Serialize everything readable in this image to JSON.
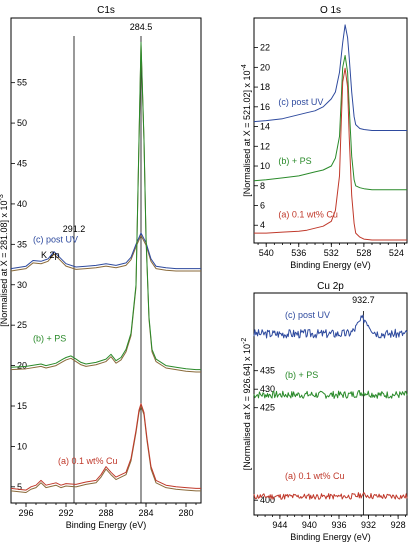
{
  "chart_data": [
    {
      "type": "line",
      "title": "C1s",
      "xlabel": "Binding Energy (eV)",
      "ylabel": "[Normalised at X = 281.08] x 10",
      "ylabel_exponent": "-3",
      "xlim": [
        297.5,
        278.5
      ],
      "ylim": [
        3,
        63
      ],
      "x_ticks": [
        "296",
        "292",
        "288",
        "284",
        "280"
      ],
      "x_tick_values": [
        296,
        292,
        288,
        284,
        280
      ],
      "y_ticks": [
        "5",
        "10",
        "15",
        "20",
        "25",
        "30",
        "35",
        "40",
        "45",
        "50",
        "55"
      ],
      "y_tick_values": [
        5,
        10,
        15,
        20,
        25,
        30,
        35,
        40,
        45,
        50,
        55
      ],
      "vlines": [
        284.5,
        291.2
      ],
      "annotations": [
        {
          "text": "284.5",
          "x": 284.5,
          "y": 61.5
        },
        {
          "text": "291.2",
          "x": 291.2,
          "y": 36.5
        },
        {
          "text": "K 2p",
          "x": 294.5,
          "y": 33.3
        }
      ],
      "series": [
        {
          "name": "(c) post UV",
          "color": "#2e4a9e",
          "label_x": 295.3,
          "label_y": 35.2,
          "x": [
            297.5,
            296,
            295.3,
            294.5,
            293.8,
            293.2,
            292.8,
            292,
            291,
            290,
            289,
            288,
            287,
            286,
            285.5,
            285,
            284.5,
            284,
            283.5,
            283,
            282,
            281,
            280,
            279,
            278.5
          ],
          "y": [
            32.0,
            32.3,
            33.0,
            32.9,
            33.2,
            34.1,
            33.6,
            32.6,
            32.2,
            32.3,
            32.4,
            32.6,
            32.4,
            32.7,
            33.4,
            35.0,
            36.4,
            35.2,
            33.2,
            32.3,
            32.1,
            32.0,
            32.0,
            32.0,
            32.0
          ]
        },
        {
          "name": "(b) + PS",
          "color": "#2a8a2a",
          "label_x": 295.3,
          "label_y": 23.0,
          "x": [
            297.5,
            296,
            294.5,
            294,
            293,
            292.3,
            292,
            291.5,
            291,
            290.5,
            290,
            289,
            288,
            287.5,
            287,
            286.5,
            286,
            285.5,
            285,
            284.8,
            284.5,
            284.2,
            284,
            283.7,
            283.4,
            283,
            282,
            281,
            280,
            279,
            278.5
          ],
          "y": [
            19.8,
            19.9,
            20.2,
            20.0,
            20.3,
            20.8,
            21.0,
            21.2,
            20.8,
            20.4,
            20.2,
            20.4,
            20.8,
            21.4,
            20.6,
            21.0,
            22.0,
            24.0,
            30.0,
            42.0,
            60.0,
            48.0,
            36.0,
            26.0,
            22.0,
            20.8,
            20.0,
            19.8,
            19.6,
            19.5,
            19.5
          ]
        },
        {
          "name": "(a) 0.1 wt% Cu",
          "color": "#c0392b",
          "label_x": 292.8,
          "label_y": 7.8,
          "x": [
            297.5,
            296,
            295.5,
            295,
            294.5,
            294,
            293,
            292.5,
            292,
            291,
            290,
            289,
            288.5,
            288,
            287.5,
            287,
            286,
            285.5,
            285,
            284.7,
            284.5,
            284.2,
            283.9,
            283.5,
            283,
            282,
            281,
            280,
            279,
            278.5
          ],
          "y": [
            4.8,
            4.6,
            5.0,
            5.2,
            5.8,
            5.2,
            5.5,
            5.2,
            5.4,
            5.3,
            5.6,
            5.8,
            6.5,
            7.5,
            6.8,
            6.2,
            6.8,
            8.5,
            12.0,
            14.5,
            15.3,
            14.2,
            11.0,
            7.5,
            5.8,
            5.2,
            5.0,
            4.9,
            4.8,
            4.8
          ]
        }
      ]
    },
    {
      "type": "line",
      "title": "O 1s",
      "xlabel": "Binding Energy (eV)",
      "ylabel": "[Normalised at X = 521.02] x 10",
      "ylabel_exponent": "-4",
      "xlim": [
        541.5,
        522.7
      ],
      "ylim": [
        2.2,
        25
      ],
      "x_ticks": [
        "540",
        "536",
        "532",
        "528",
        "524"
      ],
      "x_tick_values": [
        540,
        536,
        532,
        528,
        524
      ],
      "y_ticks": [
        "4",
        "6",
        "8",
        "10",
        "12",
        "14",
        "16",
        "18",
        "20",
        "22"
      ],
      "y_tick_values": [
        4,
        6,
        8,
        10,
        12,
        14,
        16,
        18,
        20,
        22
      ],
      "series": [
        {
          "name": "(c) post UV",
          "color": "#2e4a9e",
          "label_x": 538.5,
          "label_y": 16.2,
          "x": [
            541.5,
            540,
            538,
            536,
            535,
            534,
            533,
            532.5,
            532,
            531.5,
            531,
            530.6,
            530.3,
            530,
            529.8,
            529.5,
            529.2,
            529,
            528.5,
            528,
            527,
            526,
            525,
            524,
            522.7
          ],
          "y": [
            14.5,
            14.6,
            14.8,
            15.2,
            15.4,
            15.6,
            16.0,
            16.4,
            16.8,
            17.5,
            19.5,
            22.5,
            24.3,
            23.0,
            21.0,
            17.5,
            15.0,
            14.2,
            13.8,
            13.7,
            13.6,
            13.6,
            13.6,
            13.6,
            13.6
          ]
        },
        {
          "name": "(b) + PS",
          "color": "#2a8a2a",
          "label_x": 538.5,
          "label_y": 10.2,
          "x": [
            541.5,
            540,
            538,
            536,
            535,
            534,
            533,
            532,
            531.5,
            531,
            530.8,
            530.6,
            530.3,
            530,
            529.8,
            529.5,
            529.2,
            529,
            528.5,
            528,
            527,
            526,
            525,
            524,
            522.7
          ],
          "y": [
            8.5,
            8.6,
            8.8,
            9.0,
            9.2,
            9.4,
            9.6,
            10.0,
            10.8,
            13.0,
            16.5,
            20.0,
            21.2,
            19.5,
            16.0,
            11.0,
            8.6,
            8.0,
            7.8,
            7.7,
            7.6,
            7.6,
            7.6,
            7.6,
            7.6
          ]
        },
        {
          "name": "(a) 0.1 wt% Cu",
          "color": "#c0392b",
          "label_x": 538.5,
          "label_y": 4.8,
          "x": [
            541.5,
            540,
            538,
            536,
            535,
            534,
            533,
            532,
            531.5,
            531,
            530.8,
            530.6,
            530.3,
            530,
            529.8,
            529.5,
            529.2,
            529,
            528.5,
            528,
            527,
            526,
            525,
            524,
            522.7
          ],
          "y": [
            3.2,
            3.2,
            3.3,
            3.4,
            3.5,
            3.7,
            3.9,
            4.4,
            5.5,
            9.0,
            14.0,
            18.5,
            19.9,
            18.0,
            13.0,
            7.0,
            4.2,
            3.2,
            2.8,
            2.6,
            2.5,
            2.5,
            2.5,
            2.5,
            2.5
          ]
        }
      ]
    },
    {
      "type": "line",
      "title": "Cu 2p",
      "xlabel": "Binding Energy (eV)",
      "ylabel": "[Normalised at X = 926.64] x 10",
      "ylabel_exponent": "-2",
      "xlim": [
        947.5,
        926.8
      ],
      "ylim": [
        396,
        456
      ],
      "x_ticks": [
        "944",
        "940",
        "936",
        "932",
        "928"
      ],
      "x_tick_values": [
        944,
        940,
        936,
        932,
        928
      ],
      "y_ticks": [
        "400",
        "425",
        "430",
        "435"
      ],
      "y_tick_values": [
        400,
        425,
        430,
        435
      ],
      "vlines": [
        932.7
      ],
      "annotations": [
        {
          "text": "932.7",
          "x": 932.7,
          "y": 453.3
        }
      ],
      "series": [
        {
          "name": "(c) post UV",
          "color": "#2e4a9e",
          "base": 445.0,
          "amp": 1.2,
          "seed": 3,
          "peak_x": 932.7,
          "peak_h": 4.0,
          "label_x": 943.3,
          "label_y": 449.2
        },
        {
          "name": "(b) + PS",
          "color": "#2a8a2a",
          "base": 428.5,
          "amp": 1.0,
          "seed": 7,
          "peak_x": 932.7,
          "peak_h": 0.6,
          "label_x": 943.3,
          "label_y": 433.0
        },
        {
          "name": "(a) 0.1 wt% Cu",
          "color": "#c0392b",
          "base": 401.0,
          "amp": 0.8,
          "seed": 11,
          "peak_x": 932.7,
          "peak_h": 0.4,
          "label_x": 943.3,
          "label_y": 405.7
        }
      ]
    }
  ]
}
